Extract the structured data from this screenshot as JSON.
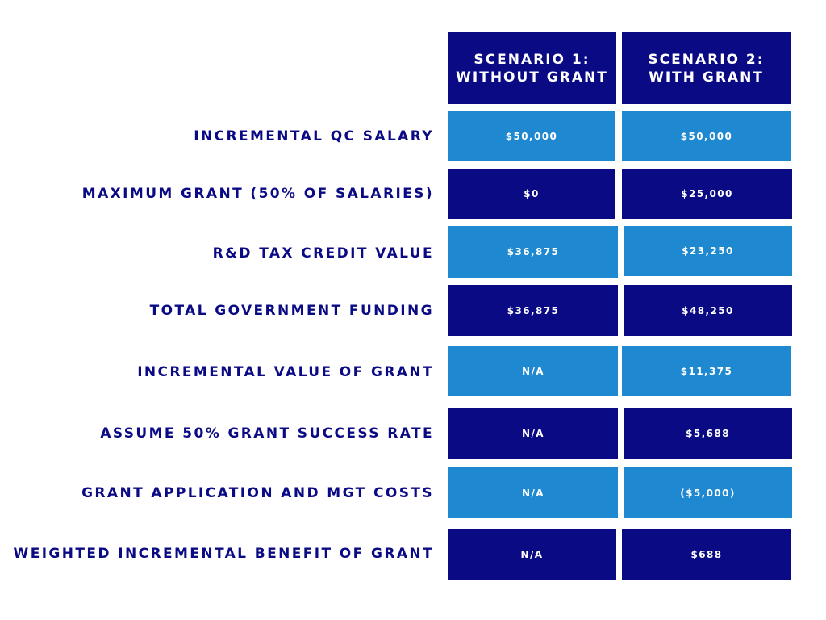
{
  "headers": [
    "SCENARIO 1:\nWITHOUT GRANT",
    "SCENARIO 2:\nWITH GRANT"
  ],
  "rows": [
    {
      "label": "INCREMENTAL QC SALARY",
      "s1": "$50,000",
      "s2": "$50,000"
    },
    {
      "label": "MAXIMUM GRANT (50% OF SALARIES)",
      "s1": "$0",
      "s2": "$25,000"
    },
    {
      "label": "R&D TAX CREDIT VALUE",
      "s1": "$36,875",
      "s2": "$23,250"
    },
    {
      "label": "TOTAL GOVERNMENT FUNDING",
      "s1": "$36,875",
      "s2": "$48,250"
    },
    {
      "label": "INCREMENTAL VALUE OF GRANT",
      "s1": "N/A",
      "s2": "$11,375"
    },
    {
      "label": "ASSUME 50% GRANT SUCCESS RATE",
      "s1": "N/A",
      "s2": "$5,688"
    },
    {
      "label": "GRANT APPLICATION AND MGT COSTS",
      "s1": "N/A",
      "s2": "($5,000)"
    },
    {
      "label": "WEIGHTED INCREMENTAL BENEFIT OF GRANT",
      "s1": "N/A",
      "s2": "$688"
    }
  ],
  "colors": {
    "dark": "#0a0a85",
    "light": "#1e88d0",
    "text": "#0a0a85"
  }
}
